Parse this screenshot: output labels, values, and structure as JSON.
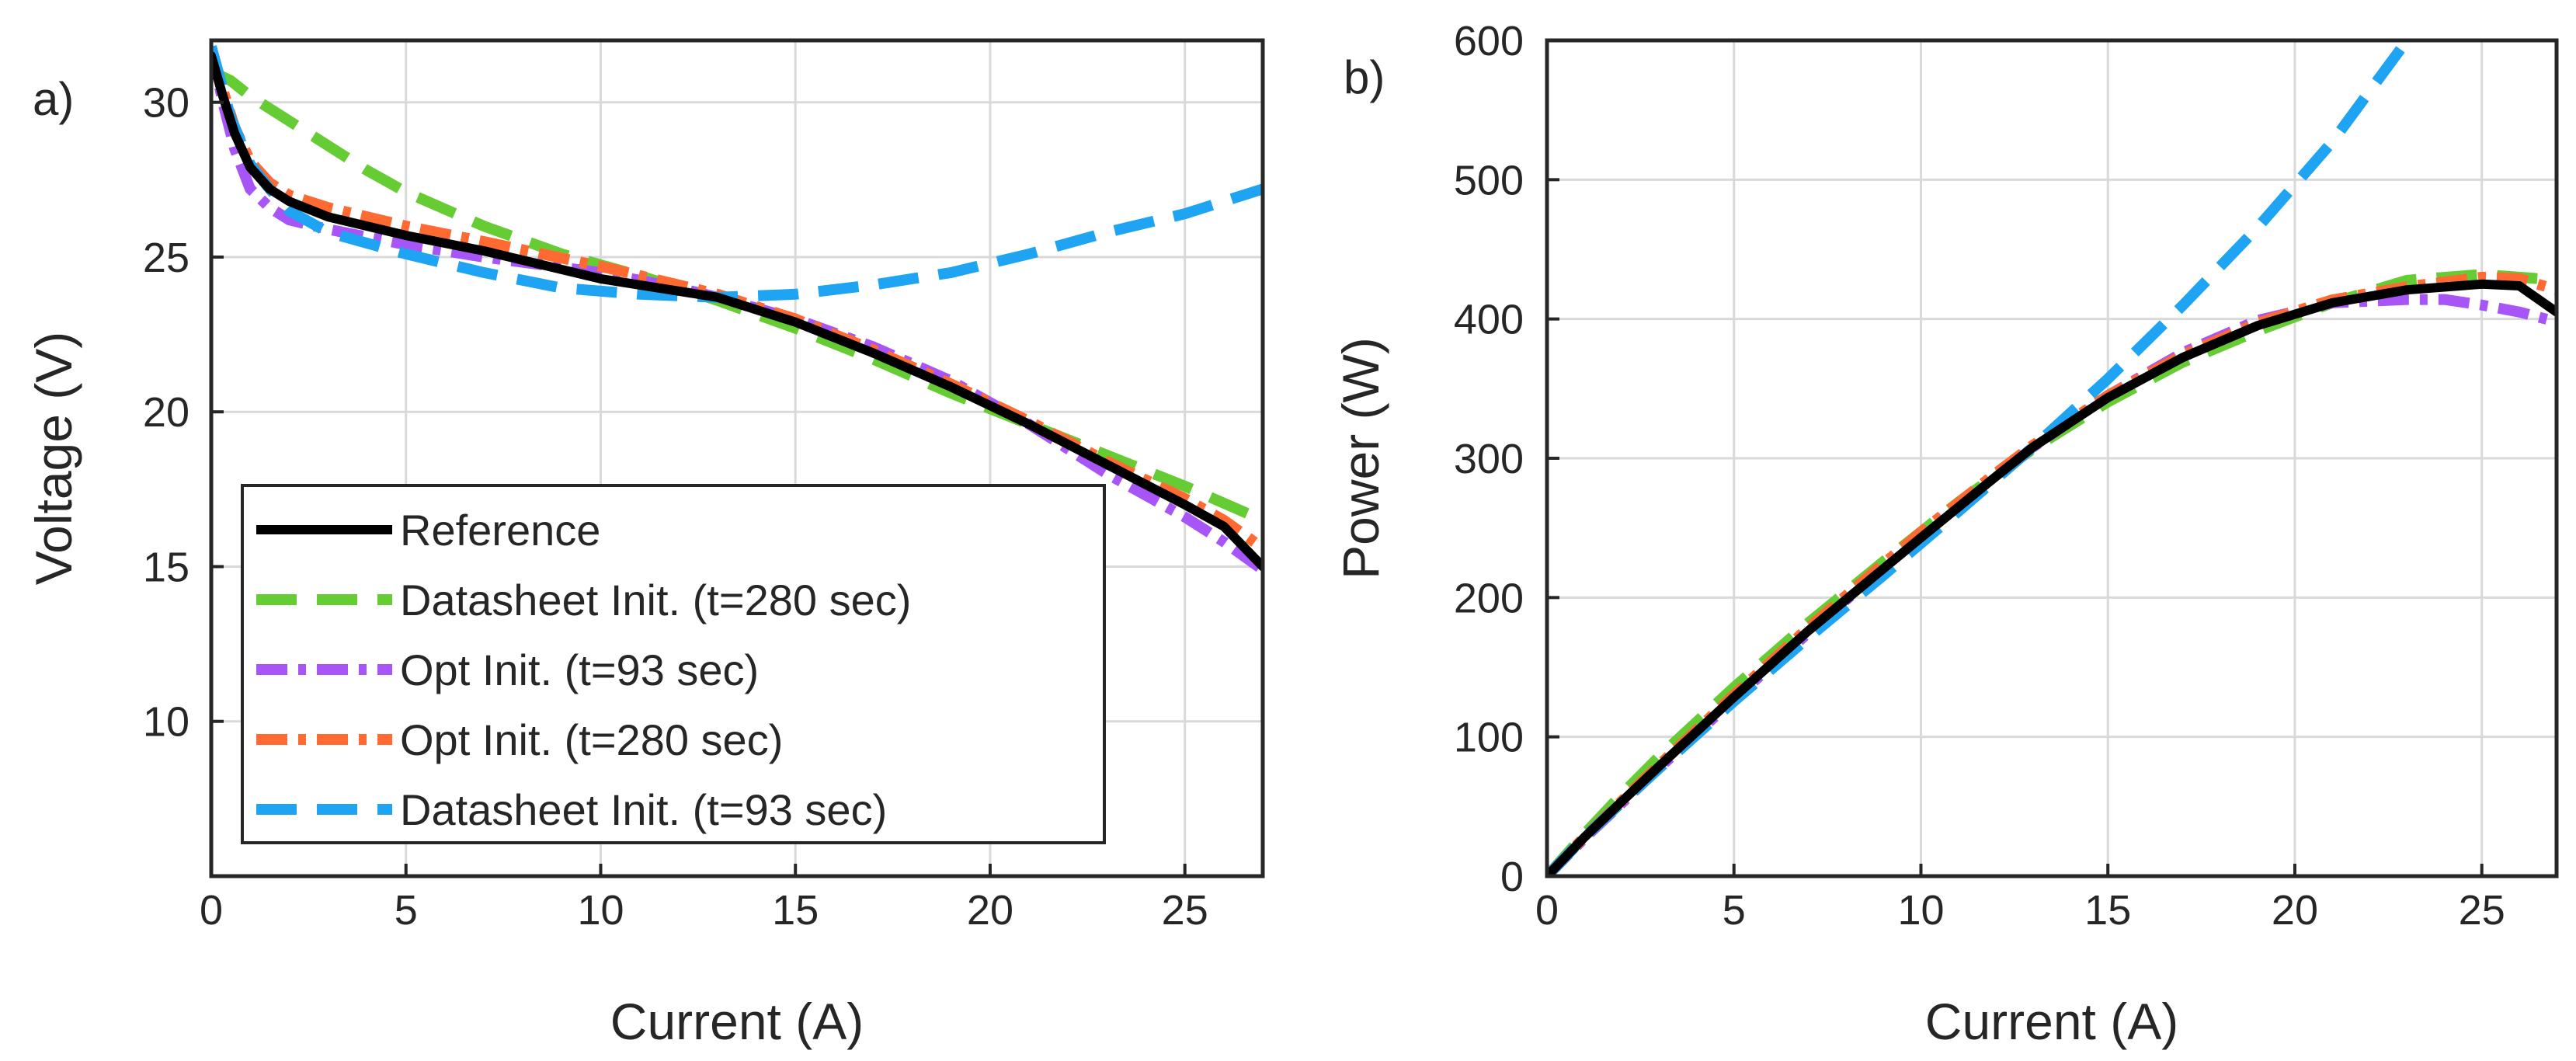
{
  "chart_data": [
    {
      "type": "line",
      "panel_label": "a)",
      "xlabel": "Current (A)",
      "ylabel": "Voltage (V)",
      "xlim": [
        0,
        27
      ],
      "ylim": [
        5,
        32
      ],
      "xticks": [
        0,
        5,
        10,
        15,
        20,
        25
      ],
      "yticks": [
        10,
        15,
        20,
        25,
        30
      ],
      "xtick_labels": [
        "0",
        "5",
        "10",
        "15",
        "20",
        "25"
      ],
      "ytick_labels": [
        "10",
        "15",
        "20",
        "25",
        "30"
      ],
      "grid": true,
      "legend": {
        "placement": "bottom-left",
        "entries": [
          "Reference",
          "Datasheet Init. (t=280 sec)",
          "Opt Init. (t=93 sec)",
          "Opt Init. (t=280 sec)",
          "Datasheet Init. (t=93 sec)"
        ]
      },
      "series": [
        {
          "name": "Reference",
          "color": "#000000",
          "dash": "solid",
          "x": [
            0,
            0.3,
            0.6,
            1,
            1.5,
            2,
            3,
            5,
            7,
            10,
            12,
            13,
            15,
            17,
            19,
            21,
            23,
            25,
            26,
            27
          ],
          "y": [
            31.5,
            30.2,
            29.0,
            27.9,
            27.2,
            26.8,
            26.3,
            25.7,
            25.2,
            24.3,
            23.9,
            23.7,
            22.9,
            21.9,
            20.8,
            19.6,
            18.3,
            17.0,
            16.3,
            15.0
          ]
        },
        {
          "name": "Datasheet Init. (t=280 sec)",
          "color": "#66cc33",
          "dash": "long",
          "x": [
            0,
            0.5,
            1,
            2,
            3,
            4,
            5,
            7,
            9,
            11,
            13,
            15,
            17,
            19,
            21,
            23,
            25,
            27
          ],
          "y": [
            31.0,
            30.7,
            30.2,
            29.4,
            28.6,
            27.8,
            27.1,
            26.0,
            25.1,
            24.4,
            23.6,
            22.7,
            21.7,
            20.6,
            19.6,
            18.6,
            17.6,
            16.5
          ]
        },
        {
          "name": "Opt Init. (t=93 sec)",
          "color": "#a855f7",
          "dash": "dashdot",
          "x": [
            0,
            0.3,
            0.6,
            1,
            1.5,
            2,
            3,
            5,
            7,
            10,
            12,
            13,
            15,
            17,
            19,
            21,
            23,
            25,
            26,
            27
          ],
          "y": [
            31.8,
            30.0,
            28.5,
            27.2,
            26.6,
            26.2,
            25.9,
            25.4,
            25.0,
            24.5,
            24.0,
            23.7,
            23.0,
            22.1,
            21.0,
            19.6,
            18.0,
            16.6,
            15.8,
            14.9
          ]
        },
        {
          "name": "Opt Init. (t=280 sec)",
          "color": "#ff6a33",
          "dash": "dashdot",
          "x": [
            0,
            0.3,
            0.6,
            1,
            1.5,
            2,
            3,
            5,
            7,
            10,
            12,
            13,
            15,
            17,
            19,
            21,
            23,
            25,
            26,
            27
          ],
          "y": [
            31.6,
            30.4,
            29.2,
            28.1,
            27.4,
            27.0,
            26.6,
            26.0,
            25.5,
            24.7,
            24.1,
            23.8,
            23.0,
            22.0,
            20.9,
            19.7,
            18.4,
            17.2,
            16.5,
            15.6
          ]
        },
        {
          "name": "Datasheet Init. (t=93 sec)",
          "color": "#1ea4f2",
          "dash": "long",
          "x": [
            0,
            0.5,
            1,
            1.5,
            2,
            3,
            5,
            7,
            9,
            11,
            13,
            15,
            17,
            19,
            21,
            23,
            25,
            27
          ],
          "y": [
            31.8,
            29.5,
            28.0,
            27.2,
            26.5,
            25.8,
            25.1,
            24.5,
            24.0,
            23.8,
            23.7,
            23.8,
            24.1,
            24.5,
            25.1,
            25.8,
            26.4,
            27.2
          ]
        }
      ]
    },
    {
      "type": "line",
      "panel_label": "b)",
      "xlabel": "Current (A)",
      "ylabel": "Power (W)",
      "xlim": [
        0,
        27
      ],
      "ylim": [
        0,
        600
      ],
      "xticks": [
        0,
        5,
        10,
        15,
        20,
        25
      ],
      "yticks": [
        0,
        100,
        200,
        300,
        400,
        500,
        600
      ],
      "xtick_labels": [
        "0",
        "5",
        "10",
        "15",
        "20",
        "25"
      ],
      "ytick_labels": [
        "0",
        "100",
        "200",
        "300",
        "400",
        "500",
        "600"
      ],
      "grid": true,
      "series": [
        {
          "name": "Reference",
          "color": "#000000",
          "dash": "solid",
          "x": [
            0,
            1,
            2,
            3,
            5,
            7,
            10,
            12,
            13,
            15,
            17,
            19,
            21,
            23,
            25,
            26,
            27
          ],
          "y": [
            0,
            27.9,
            53.6,
            78.9,
            128.5,
            176.4,
            243,
            286.8,
            308.1,
            343.5,
            372.3,
            395.2,
            411.6,
            420.9,
            425,
            423.8,
            405
          ]
        },
        {
          "name": "Datasheet Init. (t=280 sec)",
          "color": "#66cc33",
          "dash": "long",
          "x": [
            0,
            1,
            2,
            3,
            5,
            7,
            9,
            11,
            13,
            15,
            17,
            19,
            21,
            23,
            25,
            27
          ],
          "y": [
            0,
            30.2,
            58.8,
            85.8,
            135.5,
            182,
            225.9,
            268.4,
            306.8,
            340.5,
            368.9,
            391.4,
            411.6,
            427.8,
            432,
            428
          ]
        },
        {
          "name": "Opt Init. (t=93 sec)",
          "color": "#a855f7",
          "dash": "dashdot",
          "x": [
            0,
            1,
            2,
            3,
            5,
            7,
            10,
            12,
            13,
            15,
            17,
            19,
            21,
            23,
            24,
            25,
            26,
            27
          ],
          "y": [
            0,
            27.2,
            52.4,
            77.7,
            127,
            175,
            245,
            288,
            308.1,
            345,
            375.7,
            399,
            411.6,
            414,
            414,
            410,
            405,
            398
          ]
        },
        {
          "name": "Opt Init. (t=280 sec)",
          "color": "#ff6a33",
          "dash": "dashdot",
          "x": [
            0,
            1,
            2,
            3,
            5,
            7,
            10,
            12,
            13,
            15,
            17,
            19,
            21,
            23,
            25,
            26,
            27
          ],
          "y": [
            0,
            28.1,
            54,
            79.8,
            130,
            178.5,
            247,
            289.2,
            309.4,
            345,
            374,
            397.1,
            413.7,
            423.2,
            430,
            429,
            421
          ]
        },
        {
          "name": "Datasheet Init. (t=93 sec)",
          "color": "#1ea4f2",
          "dash": "long",
          "x": [
            0,
            1,
            2,
            3,
            5,
            7,
            9,
            11,
            13,
            15,
            17,
            19,
            21,
            23
          ],
          "y": [
            0,
            28,
            53,
            77.4,
            125.5,
            171.5,
            216,
            261.8,
            308.1,
            357,
            409.7,
            465.5,
            527.1,
            600
          ]
        }
      ]
    }
  ]
}
